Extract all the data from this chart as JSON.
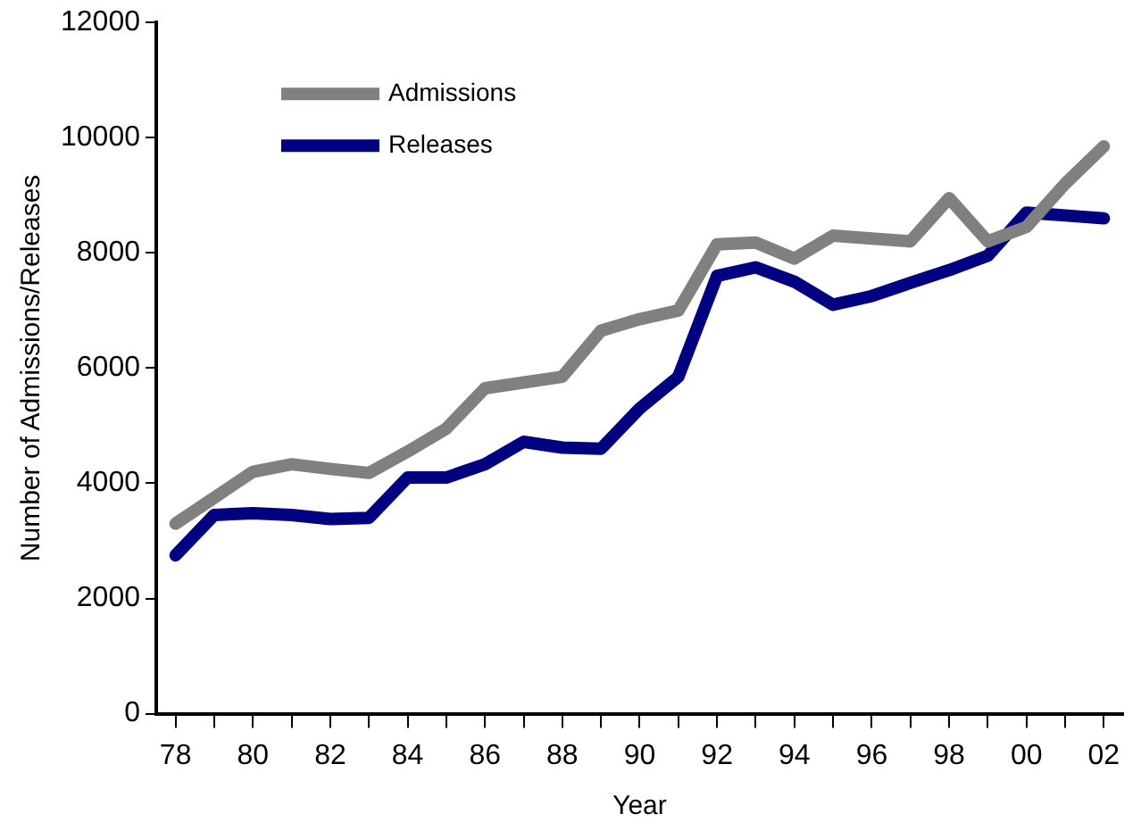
{
  "chart_data": {
    "type": "line",
    "xlabel": "Year",
    "ylabel": "Number of Admissions/Releases",
    "categories": [
      "78",
      null,
      "80",
      null,
      "82",
      null,
      "84",
      null,
      "86",
      null,
      "88",
      null,
      "90",
      null,
      "92",
      null,
      "94",
      null,
      "96",
      null,
      "98",
      null,
      "00",
      null,
      "02"
    ],
    "series": [
      {
        "name": "Admissions",
        "color": "#808080",
        "values": [
          3300,
          3750,
          4200,
          4330,
          4250,
          4180,
          4550,
          4950,
          5650,
          5750,
          5850,
          6650,
          6850,
          7000,
          8150,
          8180,
          7900,
          8300,
          8250,
          8200,
          8950,
          8200,
          8450,
          9200,
          9850
        ]
      },
      {
        "name": "Releases",
        "color": "#000080",
        "values": [
          2750,
          3450,
          3480,
          3450,
          3380,
          3400,
          4100,
          4100,
          4330,
          4720,
          4620,
          4600,
          5300,
          5850,
          7600,
          7750,
          7500,
          7100,
          7250,
          7480,
          7700,
          7950,
          8700,
          8650,
          8600
        ]
      }
    ],
    "ylim": [
      0,
      12000
    ],
    "yticks": [
      0,
      2000,
      4000,
      6000,
      8000,
      10000,
      12000
    ],
    "grid": false,
    "legend": "top left",
    "marker": "none",
    "line_style": "solid"
  }
}
